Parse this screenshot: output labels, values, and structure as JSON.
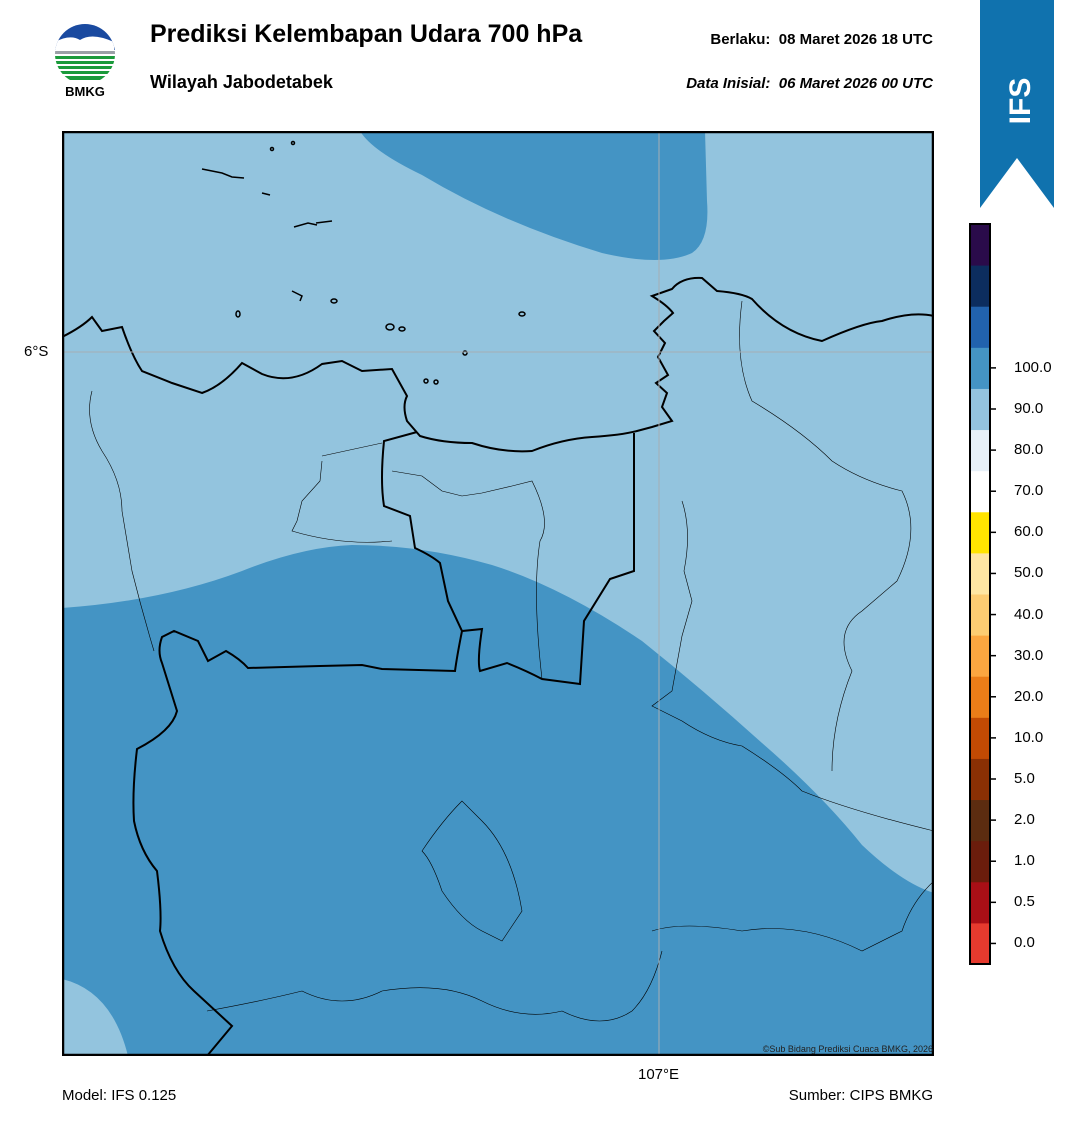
{
  "header": {
    "logo_text": "BMKG",
    "title": "Prediksi Kelembapan Udara 700 hPa",
    "subtitle": "Wilayah Jabodetabek",
    "valid_label": "Berlaku:",
    "valid_value": "08 Maret 2026 18 UTC",
    "init_label": "Data Inisial:",
    "init_value": "06 Maret 2026 00 UTC",
    "badge": "IFS"
  },
  "map": {
    "lat_label": "6°S",
    "lon_label": "107°E",
    "copyright": "©Sub Bidang Prediksi Cuaca BMKG, 2026",
    "zone_colors": {
      "band_60_70": "#93c4de",
      "band_70_80": "#4494c4"
    }
  },
  "footer": {
    "model": "Model: IFS 0.125",
    "source": "Sumber: CIPS BMKG"
  },
  "colorbar": {
    "colors": [
      "#e53a2e",
      "#a90f16",
      "#6b1d0c",
      "#5c2c10",
      "#8a3004",
      "#c24a03",
      "#eb7d18",
      "#fba640",
      "#fccc72",
      "#fee6a2",
      "#ffe400",
      "#ffffff",
      "#e7f0f8",
      "#93c4de",
      "#4494c4",
      "#2162ad",
      "#0c2d5e",
      "#2a0b4a"
    ],
    "labels": [
      "0.0",
      "0.5",
      "1.0",
      "2.0",
      "5.0",
      "10.0",
      "20.0",
      "30.0",
      "40.0",
      "50.0",
      "60.0",
      "70.0",
      "80.0",
      "90.0",
      "100.0"
    ]
  }
}
